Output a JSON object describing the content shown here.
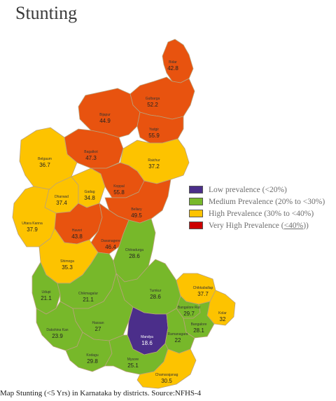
{
  "title": "Stunting",
  "caption": "Map Stunting (<5 Yrs) in Karnataka by districts. Source:NFHS-4",
  "colors": {
    "low": "#4b2e8a",
    "medium": "#77b82a",
    "high": "#fdc300",
    "very_high": "#e8530f",
    "border": "#b9a27c"
  },
  "legend": [
    {
      "label": "Low prevalence (<20%)",
      "color": "#4b2e8a"
    },
    {
      "label": "Medium Prevalence (20% to <30%)",
      "color": "#77b82a"
    },
    {
      "label": "High Prevalence (30% to <40%)",
      "color": "#fdc300"
    },
    {
      "label_prefix": "Very High Prevalence (",
      "label_underlined": "<40%",
      "label_suffix": "))",
      "color": "#cc0000"
    }
  ],
  "districts": [
    {
      "name": "Bidar",
      "value": "42.8",
      "category": "very_high"
    },
    {
      "name": "Gulbarga",
      "value": "52.2",
      "category": "very_high"
    },
    {
      "name": "Bijapur",
      "value": "44.9",
      "category": "very_high"
    },
    {
      "name": "Yadgir",
      "value": "55.9",
      "category": "very_high"
    },
    {
      "name": "Bagalkot",
      "value": "47.3",
      "category": "very_high"
    },
    {
      "name": "Raichur",
      "value": "37.2",
      "category": "high"
    },
    {
      "name": "Belgaum",
      "value": "36.7",
      "category": "high"
    },
    {
      "name": "Dharwad",
      "value": "37.4",
      "category": "high"
    },
    {
      "name": "Gadag",
      "value": "34.8",
      "category": "high"
    },
    {
      "name": "Koppal",
      "value": "55.8",
      "category": "very_high"
    },
    {
      "name": "Bellary",
      "value": "49.5",
      "category": "very_high"
    },
    {
      "name": "Uttara Kanna",
      "value": "37.9",
      "category": "high"
    },
    {
      "name": "Haveri",
      "value": "43.8",
      "category": "very_high"
    },
    {
      "name": "Davanagere",
      "value": "46.4",
      "category": "very_high"
    },
    {
      "name": "Chitradurga",
      "value": "28.6",
      "category": "medium"
    },
    {
      "name": "Shimoga",
      "value": "35.3",
      "category": "high"
    },
    {
      "name": "Udupi",
      "value": "21.1",
      "category": "medium"
    },
    {
      "name": "Chikmagalur",
      "value": "21.1",
      "category": "medium"
    },
    {
      "name": "Tumkur",
      "value": "28.6",
      "category": "medium"
    },
    {
      "name": "Chikkaballap",
      "value": "37.7",
      "category": "high"
    },
    {
      "name": "Kolar",
      "value": "32",
      "category": "high"
    },
    {
      "name": "Bangalore Rur",
      "value": "29.7",
      "category": "medium"
    },
    {
      "name": "Bangalore",
      "value": "28.1",
      "category": "medium"
    },
    {
      "name": "Hassan",
      "value": "27",
      "category": "medium"
    },
    {
      "name": "Dakshina Kan",
      "value": "23.9",
      "category": "medium"
    },
    {
      "name": "Mandya",
      "value": "18.6",
      "category": "low"
    },
    {
      "name": "Ramanagara",
      "value": "22",
      "category": "medium"
    },
    {
      "name": "Kodagu",
      "value": "29.8",
      "category": "medium"
    },
    {
      "name": "Mysore",
      "value": "25.1",
      "category": "medium"
    },
    {
      "name": "Chamarajanag",
      "value": "30.5",
      "category": "high"
    }
  ]
}
